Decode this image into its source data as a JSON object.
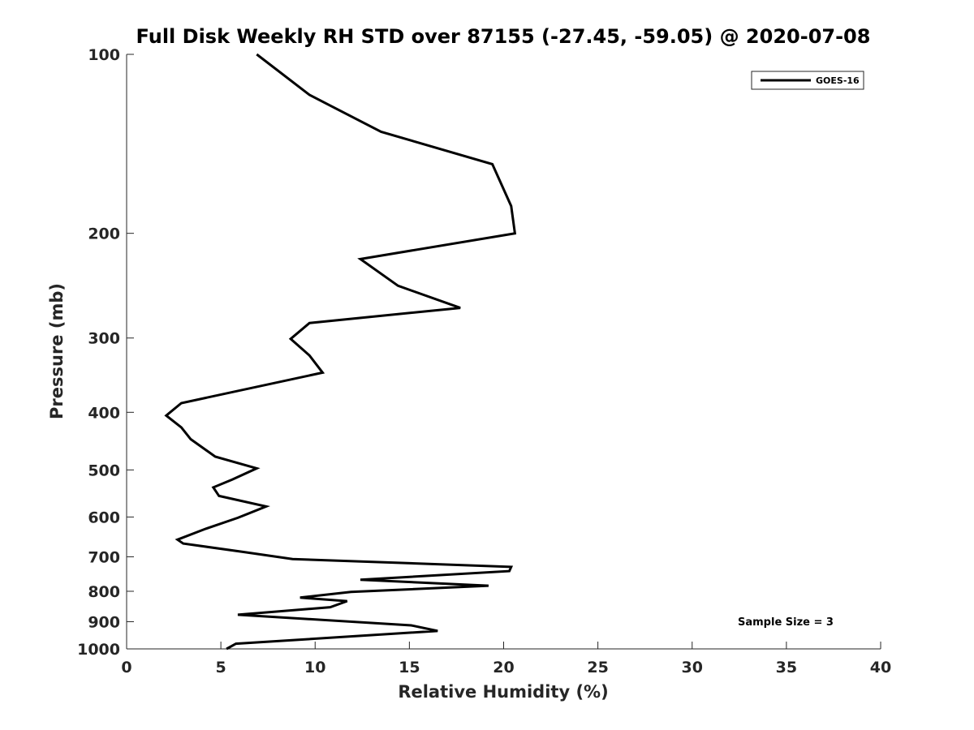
{
  "chart_data": {
    "type": "line",
    "title": "Full Disk Weekly RH STD over 87155 (-27.45, -59.05) @ 2020-07-08",
    "xlabel": "Relative Humidity (%)",
    "ylabel": "Pressure (mb)",
    "xlim": [
      0,
      40
    ],
    "ylim": [
      100,
      1000
    ],
    "yscale": "log",
    "y_reversed": true,
    "grid": false,
    "x_ticks": [
      0,
      5,
      10,
      15,
      20,
      25,
      30,
      35,
      40
    ],
    "y_ticks": [
      100,
      200,
      300,
      400,
      500,
      600,
      700,
      800,
      900,
      1000
    ],
    "legend": {
      "position": "top-right",
      "entries": [
        "GOES-16"
      ]
    },
    "annotation": "Sample Size = 3",
    "series": [
      {
        "name": "GOES-16",
        "color": "#000000",
        "x": [
          6.9,
          9.7,
          13.5,
          19.4,
          20.4,
          20.6,
          12.4,
          14.4,
          17.7,
          9.7,
          8.7,
          9.7,
          10.4,
          2.9,
          2.1,
          2.9,
          3.4,
          4.7,
          6.9,
          5.6,
          4.6,
          4.9,
          7.4,
          5.9,
          4.2,
          2.7,
          3.0,
          6.2,
          8.8,
          20.4,
          20.3,
          12.4,
          19.2,
          11.9,
          9.2,
          11.7,
          10.8,
          5.9,
          15.1,
          16.5,
          5.8,
          5.3
        ],
        "y": [
          100,
          117,
          135,
          153,
          180,
          200,
          221,
          245,
          267,
          283,
          301,
          321,
          343,
          386,
          405,
          424,
          444,
          475,
          497,
          519,
          535,
          553,
          576,
          602,
          628,
          655,
          665,
          687,
          706,
          728,
          740,
          765,
          783,
          802,
          820,
          831,
          851,
          876,
          913,
          933,
          980,
          1000
        ]
      }
    ]
  }
}
